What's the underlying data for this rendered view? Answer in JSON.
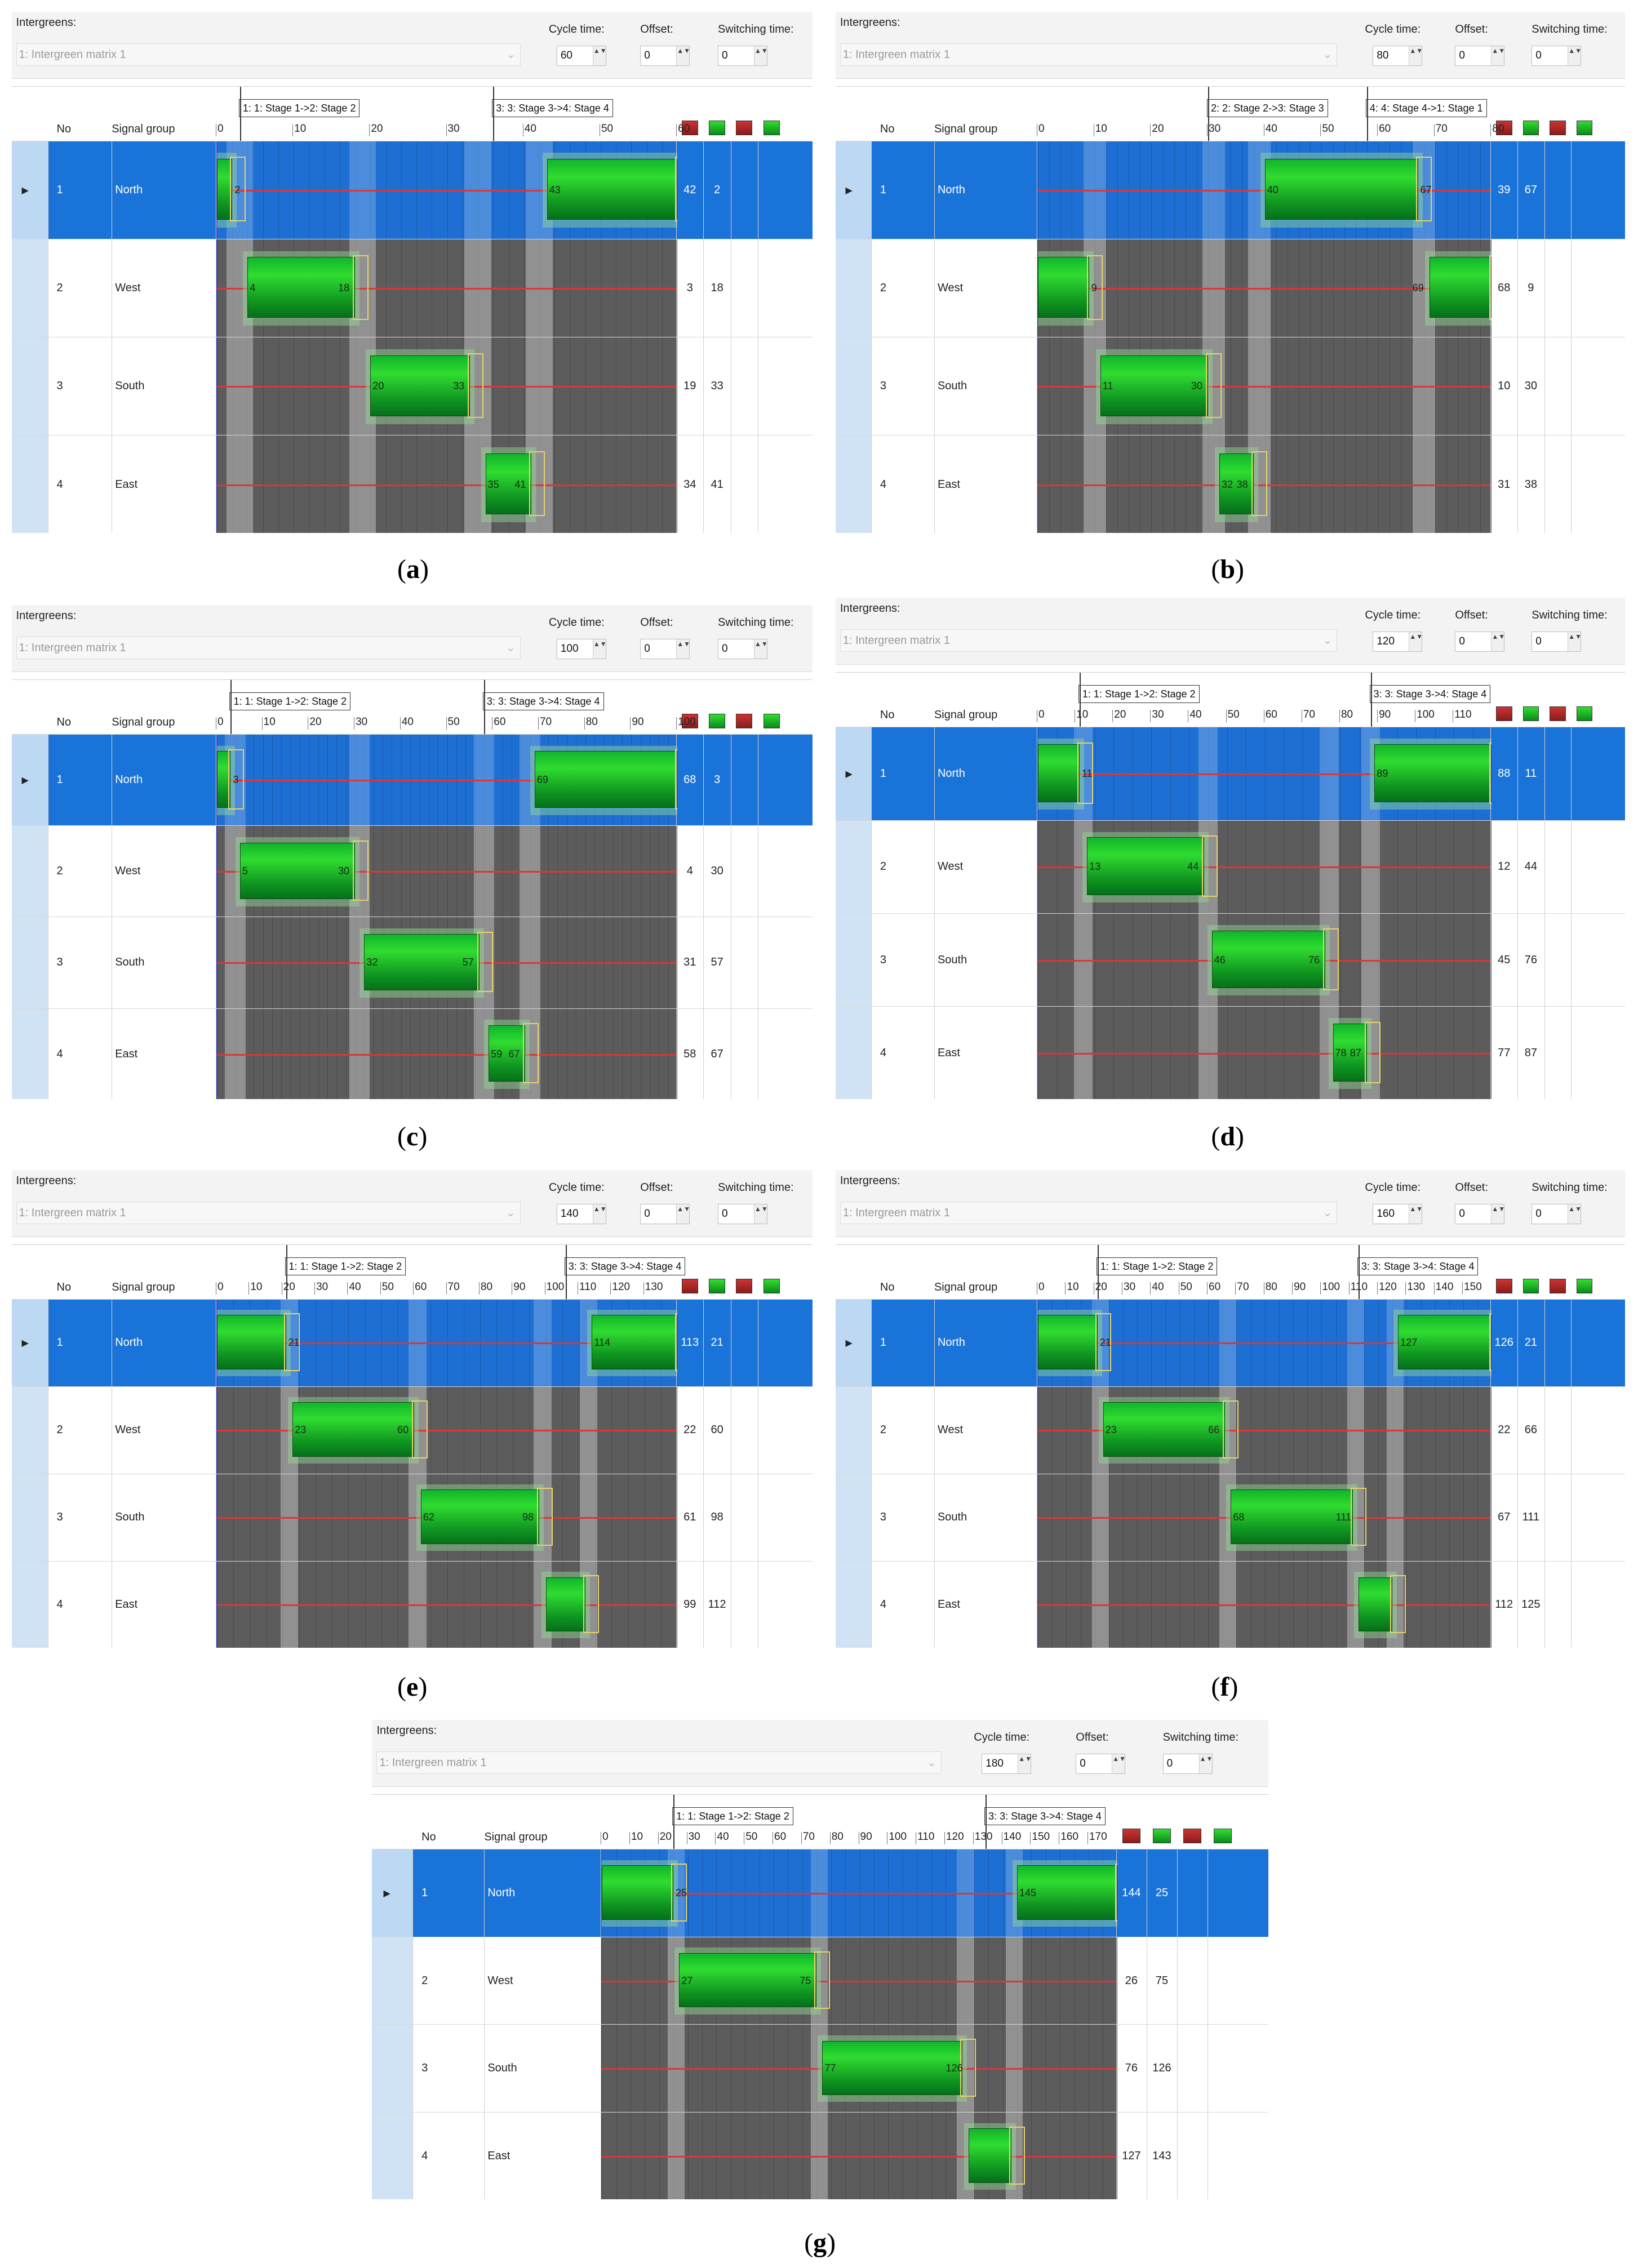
{
  "labels": {
    "intergreens": "Intergreens:",
    "matrix": "1: Intergreen matrix 1",
    "cycle": "Cycle time:",
    "offset": "Offset:",
    "switching": "Switching time:",
    "col_no": "No",
    "col_signal_group": "Signal group"
  },
  "colors": {
    "green": "#1fc22b",
    "red_line": "#d9373a",
    "selection": "#1a73d9",
    "dark_cell": "#5c5c5c"
  },
  "panels": [
    {
      "caption": "a",
      "cycle": "60",
      "offset": "0",
      "switching": "0",
      "ticks": [
        "0",
        "10",
        "20",
        "30",
        "40",
        "50",
        "60"
      ],
      "stages": [
        "1: 1: Stage 1->2: Stage 2",
        "3: 3: Stage 3->4: Stage 4"
      ],
      "rows": [
        {
          "no": "1",
          "name": "North",
          "v1": "42",
          "v2": "2",
          "labels": [
            "2",
            "43"
          ]
        },
        {
          "no": "2",
          "name": "West",
          "v1": "3",
          "v2": "18",
          "labels": [
            "4",
            "18"
          ]
        },
        {
          "no": "3",
          "name": "South",
          "v1": "19",
          "v2": "33",
          "labels": [
            "20",
            "33"
          ]
        },
        {
          "no": "4",
          "name": "East",
          "v1": "34",
          "v2": "41",
          "labels": [
            "35",
            "41"
          ]
        }
      ]
    },
    {
      "caption": "b",
      "cycle": "80",
      "offset": "0",
      "switching": "0",
      "ticks": [
        "0",
        "10",
        "20",
        "30",
        "40",
        "50",
        "60",
        "70",
        "80"
      ],
      "stages": [
        "2: 2: Stage 2->3: Stage 3",
        "4: 4: Stage 4->1: Stage 1"
      ],
      "rows": [
        {
          "no": "1",
          "name": "North",
          "v1": "39",
          "v2": "67",
          "labels": [
            "40",
            "67"
          ]
        },
        {
          "no": "2",
          "name": "West",
          "v1": "68",
          "v2": "9",
          "labels": [
            "9",
            "69"
          ]
        },
        {
          "no": "3",
          "name": "South",
          "v1": "10",
          "v2": "30",
          "labels": [
            "11",
            "30"
          ]
        },
        {
          "no": "4",
          "name": "East",
          "v1": "31",
          "v2": "38",
          "labels": [
            "32",
            "38"
          ]
        }
      ]
    },
    {
      "caption": "c",
      "cycle": "100",
      "offset": "0",
      "switching": "0",
      "ticks": [
        "0",
        "10",
        "20",
        "30",
        "40",
        "50",
        "60",
        "70",
        "80",
        "90",
        "100"
      ],
      "stages": [
        "1: 1: Stage 1->2: Stage 2",
        "3: 3: Stage 3->4: Stage 4"
      ],
      "rows": [
        {
          "no": "1",
          "name": "North",
          "v1": "68",
          "v2": "3",
          "labels": [
            "3",
            "69"
          ]
        },
        {
          "no": "2",
          "name": "West",
          "v1": "4",
          "v2": "30",
          "labels": [
            "5",
            "30"
          ]
        },
        {
          "no": "3",
          "name": "South",
          "v1": "31",
          "v2": "57",
          "labels": [
            "32",
            "57"
          ]
        },
        {
          "no": "4",
          "name": "East",
          "v1": "58",
          "v2": "67",
          "labels": [
            "59",
            "67"
          ]
        }
      ]
    },
    {
      "caption": "d",
      "cycle": "120",
      "offset": "0",
      "switching": "0",
      "ticks": [
        "0",
        "10",
        "20",
        "30",
        "40",
        "50",
        "60",
        "70",
        "80",
        "90",
        "100",
        "110"
      ],
      "stages": [
        "1: 1: Stage 1->2: Stage 2",
        "3: 3: Stage 3->4: Stage 4"
      ],
      "rows": [
        {
          "no": "1",
          "name": "North",
          "v1": "88",
          "v2": "11",
          "labels": [
            "11",
            "89"
          ]
        },
        {
          "no": "2",
          "name": "West",
          "v1": "12",
          "v2": "44",
          "labels": [
            "13",
            "44"
          ]
        },
        {
          "no": "3",
          "name": "South",
          "v1": "45",
          "v2": "76",
          "labels": [
            "46",
            "76"
          ]
        },
        {
          "no": "4",
          "name": "East",
          "v1": "77",
          "v2": "87",
          "labels": [
            "78",
            "87"
          ]
        }
      ]
    },
    {
      "caption": "e",
      "cycle": "140",
      "offset": "0",
      "switching": "0",
      "ticks": [
        "0",
        "10",
        "20",
        "30",
        "40",
        "50",
        "60",
        "70",
        "80",
        "90",
        "100",
        "110",
        "120",
        "130"
      ],
      "stages": [
        "1: 1: Stage 1->2: Stage 2",
        "3: 3: Stage 3->4: Stage 4"
      ],
      "rows": [
        {
          "no": "1",
          "name": "North",
          "v1": "113",
          "v2": "21",
          "labels": [
            "21",
            "114"
          ]
        },
        {
          "no": "2",
          "name": "West",
          "v1": "22",
          "v2": "60",
          "labels": [
            "23",
            "60"
          ]
        },
        {
          "no": "3",
          "name": "South",
          "v1": "61",
          "v2": "98",
          "labels": [
            "62",
            "98"
          ]
        },
        {
          "no": "4",
          "name": "East",
          "v1": "99",
          "v2": "112",
          "labels": []
        }
      ]
    },
    {
      "caption": "f",
      "cycle": "160",
      "offset": "0",
      "switching": "0",
      "ticks": [
        "0",
        "10",
        "20",
        "30",
        "40",
        "50",
        "60",
        "70",
        "80",
        "90",
        "100",
        "110",
        "120",
        "130",
        "140",
        "150"
      ],
      "stages": [
        "1: 1: Stage 1->2: Stage 2",
        "3: 3: Stage 3->4: Stage 4"
      ],
      "rows": [
        {
          "no": "1",
          "name": "North",
          "v1": "126",
          "v2": "21",
          "labels": [
            "21",
            "127"
          ]
        },
        {
          "no": "2",
          "name": "West",
          "v1": "22",
          "v2": "66",
          "labels": [
            "23",
            "66"
          ]
        },
        {
          "no": "3",
          "name": "South",
          "v1": "67",
          "v2": "111",
          "labels": [
            "68",
            "111"
          ]
        },
        {
          "no": "4",
          "name": "East",
          "v1": "112",
          "v2": "125",
          "labels": []
        }
      ]
    },
    {
      "caption": "g",
      "cycle": "180",
      "offset": "0",
      "switching": "0",
      "ticks": [
        "0",
        "10",
        "20",
        "30",
        "40",
        "50",
        "60",
        "70",
        "80",
        "90",
        "100",
        "110",
        "120",
        "130",
        "140",
        "150",
        "160",
        "170"
      ],
      "stages": [
        "1: 1: Stage 1->2: Stage 2",
        "3: 3: Stage 3->4: Stage 4"
      ],
      "rows": [
        {
          "no": "1",
          "name": "North",
          "v1": "144",
          "v2": "25",
          "labels": [
            "25",
            "145"
          ]
        },
        {
          "no": "2",
          "name": "West",
          "v1": "26",
          "v2": "75",
          "labels": [
            "27",
            "75"
          ]
        },
        {
          "no": "3",
          "name": "South",
          "v1": "76",
          "v2": "126",
          "labels": [
            "77",
            "126"
          ]
        },
        {
          "no": "4",
          "name": "East",
          "v1": "127",
          "v2": "143",
          "labels": []
        }
      ]
    }
  ]
}
